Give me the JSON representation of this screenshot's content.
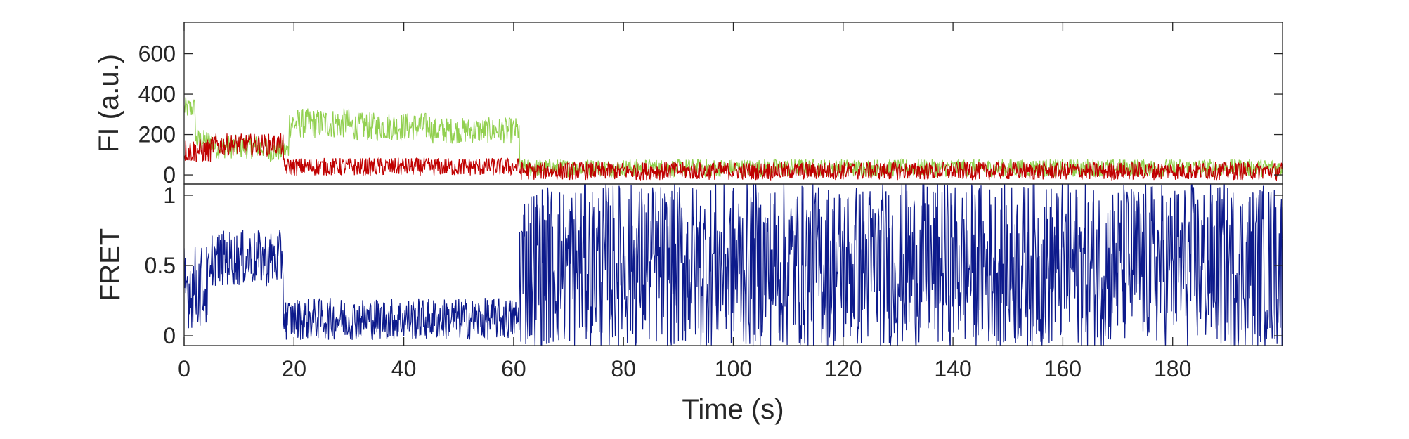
{
  "chart_data": [
    {
      "panel": "top",
      "type": "line",
      "ylabel": "FI (a.u.)",
      "xlim": [
        0,
        200
      ],
      "ylim": [
        -45,
        755
      ],
      "yticks": [
        0,
        200,
        400,
        600
      ],
      "ytick_labels": [
        "0",
        "200",
        "400",
        "600"
      ],
      "grid": false,
      "series": [
        {
          "color": "#92d050",
          "segments": [
            {
              "t0": 0,
              "t1": 2,
              "mean": 330,
              "noise": 55
            },
            {
              "t0": 2,
              "t1": 5,
              "mean": 170,
              "noise": 55
            },
            {
              "t0": 5,
              "t1": 15,
              "mean": 140,
              "noise": 60
            },
            {
              "t0": 15,
              "t1": 19,
              "mean": 120,
              "noise": 55
            },
            {
              "t0": 19,
              "t1": 30,
              "mean": 255,
              "noise": 75
            },
            {
              "t0": 30,
              "t1": 45,
              "mean": 240,
              "noise": 70
            },
            {
              "t0": 45,
              "t1": 61,
              "mean": 220,
              "noise": 65
            },
            {
              "t0": 61,
              "t1": 200,
              "mean": 35,
              "noise": 45
            }
          ]
        },
        {
          "color": "#c00000",
          "segments": [
            {
              "t0": 0,
              "t1": 5,
              "mean": 120,
              "noise": 60
            },
            {
              "t0": 5,
              "t1": 18,
              "mean": 150,
              "noise": 55
            },
            {
              "t0": 18,
              "t1": 61,
              "mean": 40,
              "noise": 45
            },
            {
              "t0": 61,
              "t1": 200,
              "mean": 20,
              "noise": 45
            }
          ]
        }
      ]
    },
    {
      "panel": "bottom",
      "type": "line",
      "xlabel": "Time (s)",
      "ylabel": "FRET",
      "xlim": [
        0,
        200
      ],
      "ylim": [
        -0.07,
        1.08
      ],
      "xticks": [
        0,
        20,
        40,
        60,
        80,
        100,
        120,
        140,
        160,
        180
      ],
      "xtick_labels": [
        "0",
        "20",
        "40",
        "60",
        "80",
        "100",
        "120",
        "140",
        "160",
        "180"
      ],
      "yticks": [
        0,
        0.5,
        1
      ],
      "ytick_labels": [
        "0",
        "0.5",
        "1"
      ],
      "grid": false,
      "series": [
        {
          "color": "#0d1a8c",
          "segments": [
            {
              "t0": 0,
              "t1": 5,
              "mean": 0.35,
              "noise": 0.3
            },
            {
              "t0": 5,
              "t1": 18,
              "mean": 0.55,
              "noise": 0.2
            },
            {
              "t0": 18,
              "t1": 61,
              "mean": 0.12,
              "noise": 0.15
            },
            {
              "t0": 61,
              "t1": 200,
              "mean": 0.5,
              "noise": 0.6
            }
          ]
        }
      ]
    }
  ]
}
